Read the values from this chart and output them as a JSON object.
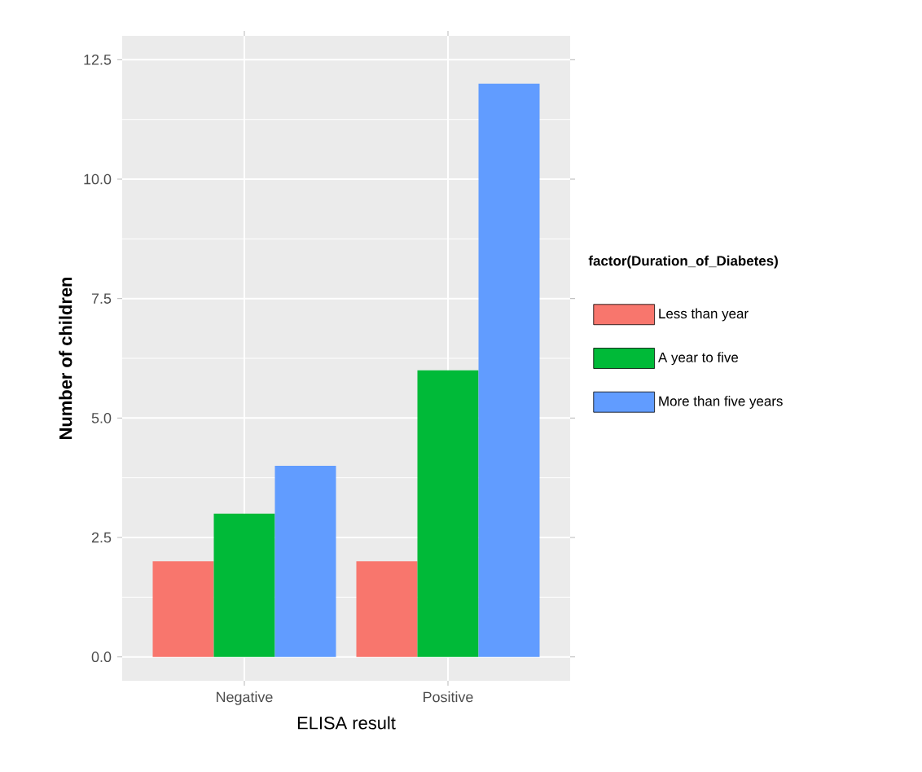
{
  "chart_data": {
    "type": "bar",
    "xlabel": "ELISA result",
    "ylabel": "Number of children",
    "legend_title": "factor(Duration_of_Diabetes)",
    "categories": [
      "Negative",
      "Positive"
    ],
    "series": [
      {
        "name": "Less than year",
        "color": "#f8766d",
        "values": [
          2,
          2
        ]
      },
      {
        "name": "A year to five",
        "color": "#00ba38",
        "values": [
          3,
          6
        ]
      },
      {
        "name": "More than five years",
        "color": "#619cff",
        "values": [
          4,
          12
        ]
      }
    ],
    "ylim": [
      -0.5,
      13.0
    ],
    "yticks": [
      {
        "value": 0,
        "label": "0.0"
      },
      {
        "value": 2.5,
        "label": "2.5"
      },
      {
        "value": 5,
        "label": "5.0"
      },
      {
        "value": 7.5,
        "label": "7.5"
      },
      {
        "value": 10,
        "label": "10.0"
      },
      {
        "value": 12.5,
        "label": "12.5"
      }
    ],
    "grid": true,
    "legend": "right"
  }
}
